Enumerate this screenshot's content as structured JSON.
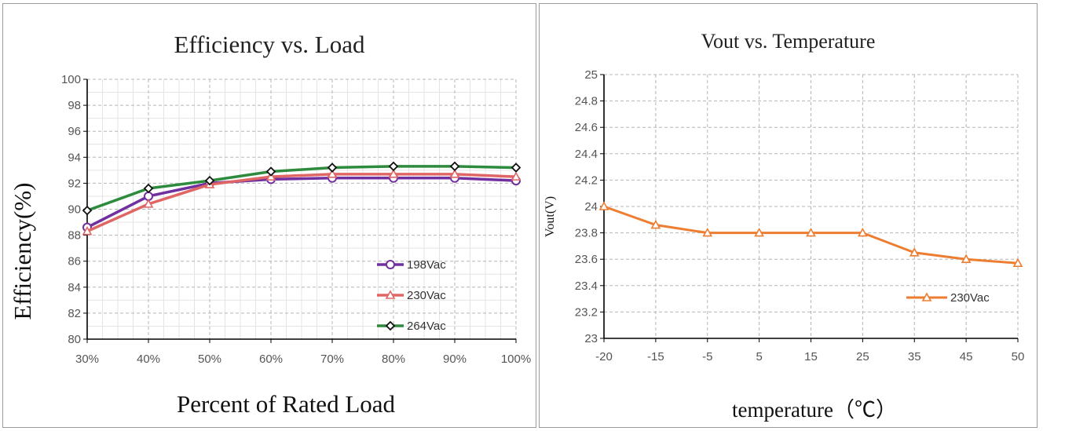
{
  "chart_data": [
    {
      "type": "line",
      "title": "Efficiency vs. Load",
      "xlabel": "Percent of Rated Load",
      "ylabel": "Efficiency(%)",
      "categories": [
        "30%",
        "40%",
        "50%",
        "60%",
        "70%",
        "80%",
        "90%",
        "100%"
      ],
      "ylim": [
        80,
        100
      ],
      "yticks": [
        80,
        82,
        84,
        86,
        88,
        90,
        92,
        94,
        96,
        98,
        100
      ],
      "grid": true,
      "legend": "bottom-right",
      "series": [
        {
          "name": "198Vac",
          "color": "#7030a0",
          "marker": "circle",
          "values": [
            88.6,
            91.0,
            92.0,
            92.3,
            92.4,
            92.4,
            92.4,
            92.2
          ]
        },
        {
          "name": "230Vac",
          "color": "#e06666",
          "marker": "triangle",
          "values": [
            88.3,
            90.4,
            91.9,
            92.5,
            92.7,
            92.7,
            92.7,
            92.5
          ]
        },
        {
          "name": "264Vac",
          "color": "#2e8b3e",
          "marker": "diamond",
          "values": [
            89.9,
            91.6,
            92.2,
            92.9,
            93.2,
            93.3,
            93.3,
            93.2
          ]
        }
      ]
    },
    {
      "type": "line",
      "title": "Vout vs. Temperature",
      "xlabel": "temperature（℃）",
      "ylabel": "Vout(V)",
      "categories": [
        "-20",
        "-15",
        "-5",
        "5",
        "15",
        "25",
        "35",
        "45",
        "50"
      ],
      "ylim": [
        23,
        25
      ],
      "yticks": [
        "23",
        "23.2",
        "23.4",
        "23.6",
        "23.8",
        "24",
        "24.2",
        "24.4",
        "24.6",
        "24.8",
        "25"
      ],
      "grid": true,
      "legend": "right",
      "series": [
        {
          "name": "230Vac",
          "color": "#ed7d31",
          "marker": "triangle",
          "values": [
            24.0,
            23.86,
            23.8,
            23.8,
            23.8,
            23.8,
            23.65,
            23.6,
            23.57
          ]
        }
      ]
    }
  ]
}
